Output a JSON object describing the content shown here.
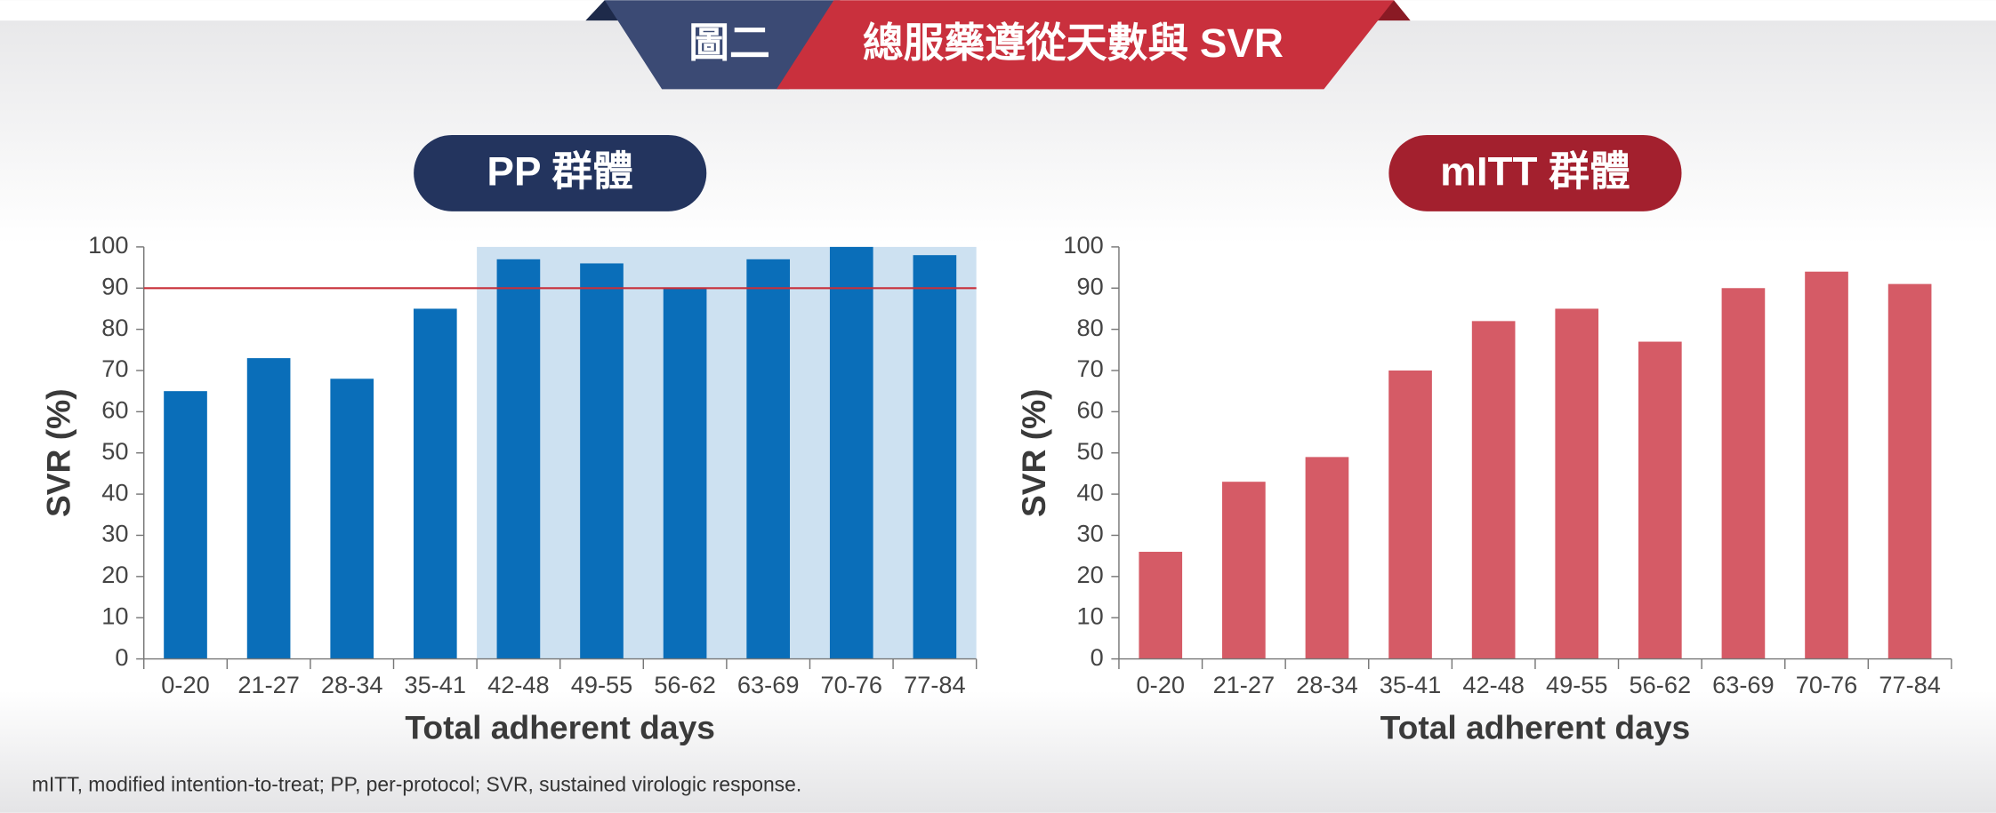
{
  "header": {
    "label": "圖二",
    "title": "總服藥遵從天數與 SVR"
  },
  "chart_data": [
    {
      "type": "bar",
      "title": "PP 群體",
      "title_color": "#23345e",
      "categories": [
        "0-20",
        "21-27",
        "28-34",
        "35-41",
        "42-48",
        "49-55",
        "56-62",
        "63-69",
        "70-76",
        "77-84"
      ],
      "values": [
        65,
        73,
        68,
        85,
        97,
        96,
        90,
        97,
        100,
        98
      ],
      "color": "#0a6eb9",
      "xlabel": "Total adherent days",
      "ylabel": "SVR (%)",
      "ylim": [
        0,
        100
      ],
      "yticks": [
        0,
        10,
        20,
        30,
        40,
        50,
        60,
        70,
        80,
        90,
        100
      ],
      "ref_line": {
        "value": 90,
        "color": "#c8303a"
      },
      "highlight": {
        "from": "42-48",
        "to": "77-84",
        "color": "#cde1f1"
      }
    },
    {
      "type": "bar",
      "title": "mITT 群體",
      "title_color": "#a3202e",
      "categories": [
        "0-20",
        "21-27",
        "28-34",
        "35-41",
        "42-48",
        "49-55",
        "56-62",
        "63-69",
        "70-76",
        "77-84"
      ],
      "values": [
        26,
        43,
        49,
        70,
        82,
        85,
        77,
        90,
        94,
        91
      ],
      "color": "#d55b66",
      "xlabel": "Total adherent days",
      "ylabel": "SVR (%)",
      "ylim": [
        0,
        100
      ],
      "yticks": [
        0,
        10,
        20,
        30,
        40,
        50,
        60,
        70,
        80,
        90,
        100
      ]
    }
  ],
  "footnote": "mITT, modified intention-to-treat; PP, per-protocol; SVR, sustained virologic response."
}
